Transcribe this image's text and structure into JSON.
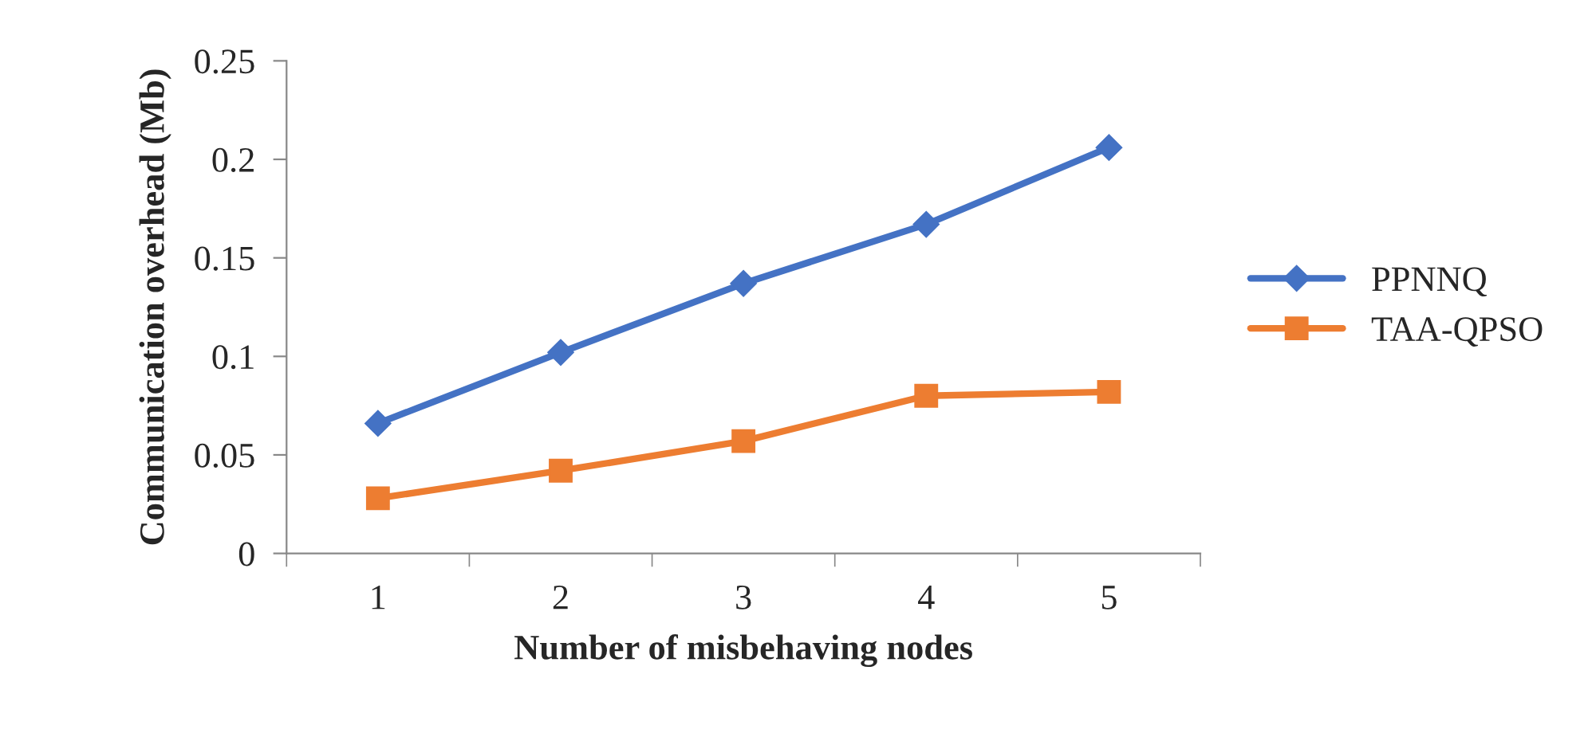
{
  "chart_data": {
    "type": "line",
    "xlabel": "Number of misbehaving nodes",
    "ylabel": "Communication overhead (Mb)",
    "categories": [
      "1",
      "2",
      "3",
      "4",
      "5"
    ],
    "series": [
      {
        "name": "PPNNQ",
        "color": "#4472c4",
        "values": [
          0.066,
          0.102,
          0.137,
          0.167,
          0.206
        ],
        "marker": "diamond"
      },
      {
        "name": "TAA-QPSO",
        "color": "#ed7d31",
        "values": [
          0.028,
          0.042,
          0.057,
          0.08,
          0.082
        ],
        "marker": "square"
      }
    ],
    "ylim": [
      0,
      0.25
    ],
    "yticks": [
      0,
      0.05,
      0.1,
      0.15,
      0.2,
      0.25
    ],
    "grid": false,
    "legend": "right",
    "line_style": "solid"
  }
}
